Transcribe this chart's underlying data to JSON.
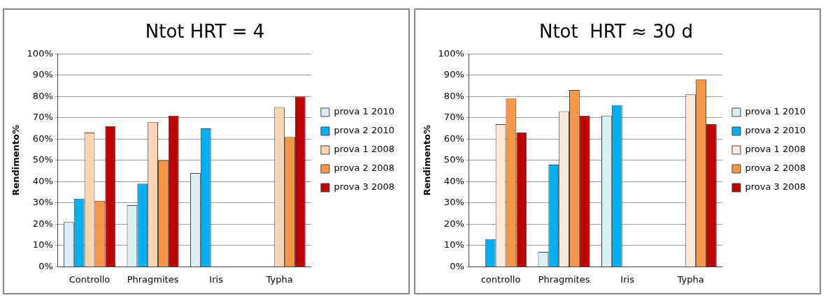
{
  "chart_data": [
    {
      "type": "bar",
      "title": "Ntot HRT = 4",
      "ylabel": "Rendimento%",
      "categories": [
        "Controllo",
        "Phragmites",
        "Iris",
        "Typha"
      ],
      "series": [
        {
          "name": "prova 1 2010",
          "color": "#daeef3",
          "values": [
            21,
            29,
            44,
            null
          ]
        },
        {
          "name": "prova 2 2010",
          "color": "#00b0f0",
          "values": [
            32,
            39,
            65,
            null
          ]
        },
        {
          "name": "prova 1 2008",
          "color": "#fcd5b4",
          "values": [
            63,
            68,
            null,
            75
          ]
        },
        {
          "name": "prova 2 2008",
          "color": "#f79646",
          "values": [
            31,
            50,
            null,
            61
          ]
        },
        {
          "name": "prova 3 2008",
          "color": "#c00000",
          "values": [
            66,
            71,
            null,
            80
          ]
        }
      ],
      "ylim": [
        0,
        100
      ],
      "yticks": [
        {
          "value": 0,
          "label": "0%"
        },
        {
          "value": 10,
          "label": "10%"
        },
        {
          "value": 20,
          "label": "20%"
        },
        {
          "value": 30,
          "label": "30%"
        },
        {
          "value": 40,
          "label": "40%"
        },
        {
          "value": 50,
          "label": "50%"
        },
        {
          "value": 60,
          "label": "60%"
        },
        {
          "value": 70,
          "label": "70%"
        },
        {
          "value": 80,
          "label": "80%"
        },
        {
          "value": 90,
          "label": "90%"
        },
        {
          "value": 100,
          "label": "100%"
        }
      ],
      "grid": "y",
      "legend": "right"
    },
    {
      "type": "bar",
      "title": "Ntot  HRT ≈ 30 d",
      "ylabel": "Rendimento%",
      "categories": [
        "controllo",
        "Phragmites",
        "Iris",
        "Typha"
      ],
      "series": [
        {
          "name": "prova 1 2010",
          "color": "#daeef3",
          "values": [
            0,
            7,
            71,
            null
          ]
        },
        {
          "name": "prova 2 2010",
          "color": "#00b0f0",
          "values": [
            13,
            48,
            76,
            null
          ]
        },
        {
          "name": "prova 1 2008",
          "color": "#fde9d9",
          "values": [
            67,
            73,
            null,
            81
          ]
        },
        {
          "name": "prova 2 2008",
          "color": "#f79646",
          "values": [
            79,
            83,
            null,
            88
          ]
        },
        {
          "name": "prova 3 2008",
          "color": "#c00000",
          "values": [
            63,
            71,
            null,
            67
          ]
        }
      ],
      "ylim": [
        0,
        100
      ],
      "yticks": [
        {
          "value": 0,
          "label": "0%"
        },
        {
          "value": 10,
          "label": "10%"
        },
        {
          "value": 20,
          "label": "20%"
        },
        {
          "value": 30,
          "label": "30%"
        },
        {
          "value": 40,
          "label": "40%"
        },
        {
          "value": 50,
          "label": "50%"
        },
        {
          "value": 60,
          "label": "60%"
        },
        {
          "value": 70,
          "label": "70%"
        },
        {
          "value": 80,
          "label": "80%"
        },
        {
          "value": 90,
          "label": "90%"
        },
        {
          "value": 100,
          "label": "100%"
        }
      ],
      "grid": "y",
      "legend": "right"
    }
  ]
}
